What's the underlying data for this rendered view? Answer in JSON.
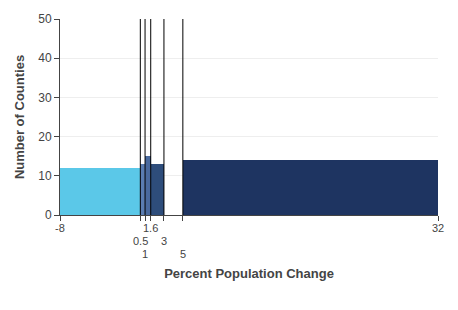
{
  "chart_data": {
    "type": "histogram",
    "xlabel": "Percent Population Change",
    "ylabel": "Number of Counties",
    "bins": [
      -8,
      0.5,
      1,
      1.6,
      3,
      5,
      32
    ],
    "counts": [
      12,
      13,
      15,
      13,
      null,
      14
    ],
    "colors": [
      "#5bc8e8",
      "#5b7db1",
      "#4a6a9e",
      "#2e4d7b",
      null,
      "#1e3461"
    ],
    "xlim": [
      -8,
      32
    ],
    "xticks": [
      -8,
      0.5,
      1,
      1.6,
      3,
      5,
      32
    ],
    "ylim": [
      0,
      50
    ],
    "yticks": [
      0,
      10,
      20,
      30,
      40,
      50
    ],
    "grid": true
  }
}
